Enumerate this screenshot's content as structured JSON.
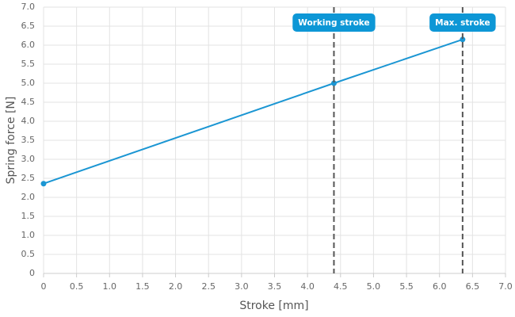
{
  "chart_data": {
    "type": "line",
    "x_label": "Stroke [mm]",
    "y_label": "Spring force [N]",
    "x": [
      0,
      4.4,
      6.35
    ],
    "series": [
      {
        "name": "Spring force",
        "color": "#1b96d3",
        "values": [
          2.36,
          5.0,
          6.15
        ]
      }
    ],
    "xlim": [
      0,
      7
    ],
    "ylim": [
      0,
      7
    ],
    "xticks": [
      0,
      0.5,
      {
        "value": 1,
        "label": "1.0"
      },
      1.5,
      {
        "value": 2,
        "label": "2.0"
      },
      2.5,
      {
        "value": 3,
        "label": "3.0"
      },
      3.5,
      {
        "value": 4,
        "label": "4.0"
      },
      4.5,
      {
        "value": 5,
        "label": "5.0"
      },
      5.5,
      {
        "value": 6,
        "label": "6.0"
      },
      6.5,
      {
        "value": 7,
        "label": "7.0"
      }
    ],
    "yticks": [
      0,
      0.5,
      {
        "value": 1,
        "label": "1.0"
      },
      1.5,
      {
        "value": 2,
        "label": "2.0"
      },
      2.5,
      {
        "value": 3,
        "label": "3.0"
      },
      3.5,
      {
        "value": 4,
        "label": "4.0"
      },
      4.5,
      {
        "value": 5,
        "label": "5.0"
      },
      5.5,
      {
        "value": 6,
        "label": "6.0"
      },
      6.5,
      {
        "value": 7,
        "label": "7.0"
      }
    ],
    "grid": true,
    "annotations": [
      {
        "x": 4.4,
        "label": "Working stroke"
      },
      {
        "x": 6.35,
        "label": "Max. stroke"
      }
    ],
    "annotation_color": "#0d97d6"
  }
}
